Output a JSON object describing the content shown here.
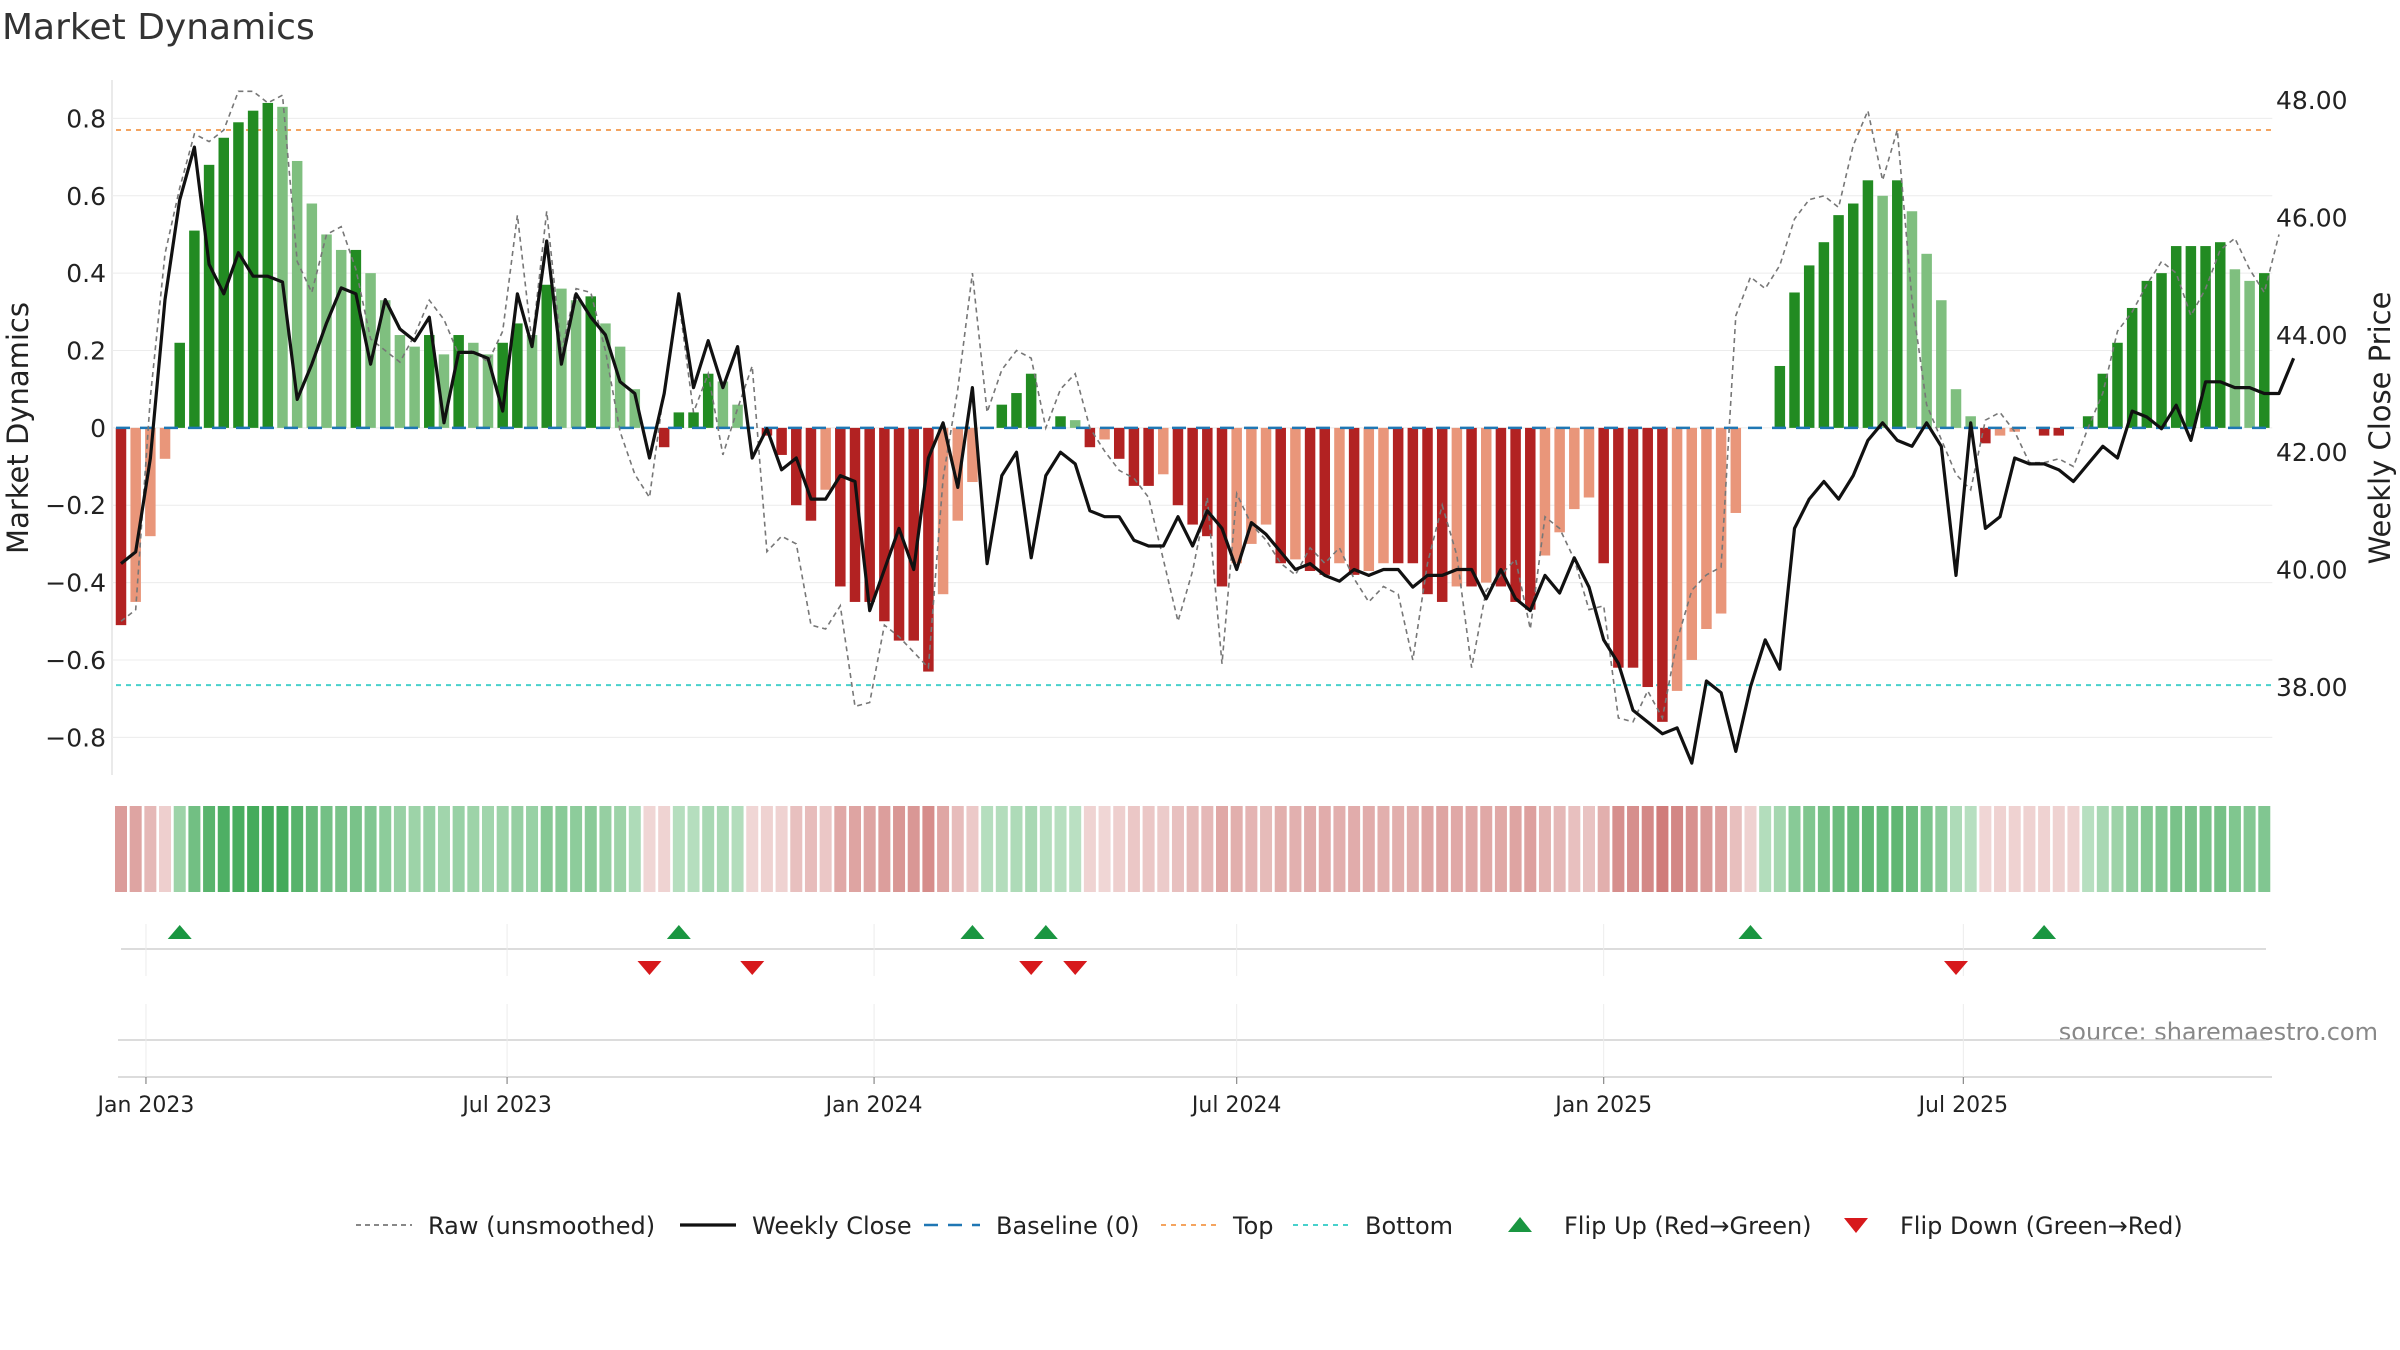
{
  "chart_data": {
    "type": "bar",
    "title": "Market Dynamics",
    "ylabel": "Market Dynamics",
    "y2label": "Weekly Close Price",
    "source": "source: sharemaestro.com",
    "ylim": [
      -0.9,
      0.92
    ],
    "y2lim": [
      36.48,
      48.48
    ],
    "y_ticks": [
      "−0.8",
      "−0.6",
      "−0.4",
      "−0.2",
      "0",
      "0.2",
      "0.4",
      "0.6",
      "0.8"
    ],
    "y_tick_values": [
      -0.8,
      -0.6,
      -0.4,
      -0.2,
      0,
      0.2,
      0.4,
      0.6,
      0.8
    ],
    "y2_ticks": [
      "38.00",
      "40.00",
      "42.00",
      "44.00",
      "46.00",
      "48.00"
    ],
    "y2_tick_values": [
      38,
      40,
      42,
      44,
      46,
      48
    ],
    "x_ticks": [
      "Jan 2023",
      "Jul 2023",
      "Jan 2024",
      "Jul 2024",
      "Jan 2025",
      "Jul 2025"
    ],
    "x_tick_weeks": [
      1.7,
      26.3,
      51.3,
      76,
      101,
      125.5
    ],
    "top_threshold": 0.77,
    "bottom_threshold": -0.665,
    "grid": true,
    "colors": {
      "strong_green": "#228b22",
      "light_green": "#7fbf7f",
      "strong_red": "#b22222",
      "light_red": "#e9967a",
      "close": "#111111",
      "raw": "#777777",
      "baseline": "#1f77b4",
      "top": "#f4a460",
      "bottom": "#48d1cc",
      "flip_up": "#1a9641",
      "flip_down": "#d7191c"
    },
    "series": [
      {
        "name": "Market Dynamics",
        "values": [
          -0.51,
          -0.45,
          -0.28,
          -0.08,
          0.22,
          0.51,
          0.68,
          0.75,
          0.79,
          0.82,
          0.84,
          0.83,
          0.69,
          0.58,
          0.5,
          0.46,
          0.46,
          0.4,
          0.33,
          0.24,
          0.21,
          0.24,
          0.19,
          0.24,
          0.22,
          0.19,
          0.22,
          0.27,
          0.24,
          0.37,
          0.36,
          0.33,
          0.34,
          0.27,
          0.21,
          0.1,
          0.0,
          -0.05,
          0.04,
          0.04,
          0.14,
          0.12,
          0.06,
          0.0,
          -0.02,
          -0.07,
          -0.2,
          -0.24,
          -0.16,
          -0.41,
          -0.45,
          -0.45,
          -0.5,
          -0.55,
          -0.55,
          -0.63,
          -0.43,
          -0.24,
          -0.14,
          0.0,
          0.06,
          0.09,
          0.14,
          0.0,
          0.03,
          0.02,
          -0.05,
          -0.03,
          -0.08,
          -0.15,
          -0.15,
          -0.12,
          -0.2,
          -0.25,
          -0.28,
          -0.41,
          -0.35,
          -0.3,
          -0.25,
          -0.35,
          -0.34,
          -0.37,
          -0.38,
          -0.35,
          -0.38,
          -0.37,
          -0.35,
          -0.35,
          -0.35,
          -0.43,
          -0.45,
          -0.41,
          -0.41,
          -0.4,
          -0.41,
          -0.45,
          -0.47,
          -0.33,
          -0.27,
          -0.21,
          -0.18,
          -0.35,
          -0.62,
          -0.62,
          -0.67,
          -0.76,
          -0.68,
          -0.6,
          -0.52,
          -0.48,
          -0.22,
          0.0,
          0.0,
          0.16,
          0.35,
          0.42,
          0.48,
          0.55,
          0.58,
          0.64,
          0.6,
          0.64,
          0.56,
          0.45,
          0.33,
          0.1,
          0.03,
          -0.04,
          -0.02,
          -0.01,
          0.0,
          -0.02,
          -0.02,
          0.0,
          0.03,
          0.14,
          0.22,
          0.31,
          0.38,
          0.4,
          0.47,
          0.47,
          0.47,
          0.48,
          0.41,
          0.38,
          0.4
        ]
      },
      {
        "name": "Weekly Close",
        "values": [
          40.1,
          40.3,
          41.9,
          44.6,
          46.3,
          47.2,
          45.2,
          44.7,
          45.4,
          45.0,
          45.0,
          44.9,
          42.9,
          43.5,
          44.2,
          44.8,
          44.7,
          43.5,
          44.6,
          44.1,
          43.9,
          44.3,
          42.5,
          43.7,
          43.7,
          43.6,
          42.7,
          44.7,
          43.8,
          45.6,
          43.5,
          44.7,
          44.3,
          44.0,
          43.2,
          43.0,
          41.9,
          43.0,
          44.7,
          43.1,
          43.9,
          43.1,
          43.8,
          41.9,
          42.4,
          41.7,
          41.9,
          41.2,
          41.2,
          41.6,
          41.5,
          39.3,
          40.0,
          40.7,
          40.0,
          41.9,
          42.5,
          41.4,
          43.1,
          40.1,
          41.6,
          42.0,
          40.2,
          41.6,
          42.0,
          41.8,
          41.0,
          40.9,
          40.9,
          40.5,
          40.4,
          40.4,
          40.9,
          40.4,
          41.0,
          40.7,
          40.0,
          40.8,
          40.6,
          40.3,
          40.0,
          40.1,
          39.9,
          39.8,
          40.0,
          39.9,
          40.0,
          40.0,
          39.7,
          39.9,
          39.9,
          40.0,
          40.0,
          39.5,
          40.0,
          39.5,
          39.3,
          39.9,
          39.6,
          40.2,
          39.7,
          38.8,
          38.4,
          37.6,
          37.4,
          37.2,
          37.3,
          36.7,
          38.1,
          37.9,
          36.9,
          38.0,
          38.8,
          38.3,
          40.7,
          41.2,
          41.5,
          41.2,
          41.6,
          42.2,
          42.5,
          42.2,
          42.1,
          42.5,
          42.1,
          39.9,
          42.5,
          40.7,
          40.9,
          41.9,
          41.8,
          41.8,
          41.7,
          41.5,
          41.8,
          42.1,
          41.9,
          42.7,
          42.6,
          42.4,
          42.8,
          42.2,
          43.2,
          43.2,
          43.1,
          43.1,
          43.0,
          43.0,
          43.6
        ]
      },
      {
        "name": "Raw (unsmoothed)",
        "values": [
          -0.5,
          -0.47,
          0.08,
          0.45,
          0.62,
          0.76,
          0.74,
          0.77,
          0.87,
          0.87,
          0.84,
          0.86,
          0.43,
          0.35,
          0.5,
          0.52,
          0.41,
          0.23,
          0.2,
          0.17,
          0.24,
          0.33,
          0.28,
          0.19,
          0.2,
          0.17,
          0.25,
          0.55,
          0.22,
          0.56,
          0.2,
          0.36,
          0.35,
          0.2,
          -0.01,
          -0.12,
          -0.18,
          0.1,
          0.33,
          0.04,
          0.14,
          -0.07,
          0.05,
          0.16,
          -0.32,
          -0.28,
          -0.3,
          -0.51,
          -0.52,
          -0.46,
          -0.72,
          -0.71,
          -0.51,
          -0.54,
          -0.58,
          -0.62,
          -0.13,
          0.1,
          0.4,
          0.04,
          0.15,
          0.2,
          0.18,
          0.0,
          0.1,
          0.14,
          0.0,
          -0.06,
          -0.11,
          -0.13,
          -0.18,
          -0.34,
          -0.5,
          -0.37,
          -0.18,
          -0.61,
          -0.17,
          -0.25,
          -0.29,
          -0.35,
          -0.38,
          -0.31,
          -0.35,
          -0.31,
          -0.39,
          -0.45,
          -0.41,
          -0.43,
          -0.6,
          -0.35,
          -0.2,
          -0.33,
          -0.62,
          -0.42,
          -0.38,
          -0.34,
          -0.52,
          -0.23,
          -0.26,
          -0.34,
          -0.47,
          -0.46,
          -0.75,
          -0.76,
          -0.68,
          -0.75,
          -0.55,
          -0.42,
          -0.38,
          -0.36,
          0.29,
          0.39,
          0.36,
          0.42,
          0.54,
          0.59,
          0.6,
          0.57,
          0.73,
          0.82,
          0.64,
          0.77,
          0.33,
          0.06,
          -0.03,
          -0.12,
          -0.16,
          0.02,
          0.04,
          -0.01,
          -0.09,
          -0.09,
          -0.08,
          -0.1,
          0.0,
          0.09,
          0.25,
          0.3,
          0.37,
          0.43,
          0.4,
          0.29,
          0.36,
          0.46,
          0.49,
          0.41,
          0.35,
          0.5
        ]
      },
      {
        "name": "Baseline (0)",
        "values": [
          0
        ]
      },
      {
        "name": "Top",
        "values": [
          0.77
        ]
      },
      {
        "name": "Bottom",
        "values": [
          -0.665
        ]
      }
    ],
    "regime_strip": [
      -0.51,
      -0.45,
      -0.28,
      -0.08,
      0.22,
      0.51,
      0.68,
      0.75,
      0.79,
      0.82,
      0.84,
      0.83,
      0.69,
      0.58,
      0.5,
      0.46,
      0.46,
      0.4,
      0.33,
      0.24,
      0.21,
      0.24,
      0.19,
      0.24,
      0.22,
      0.19,
      0.22,
      0.27,
      0.24,
      0.37,
      0.36,
      0.33,
      0.34,
      0.27,
      0.21,
      0.1,
      -0.04,
      -0.05,
      0.04,
      0.04,
      0.14,
      0.12,
      0.06,
      -0.04,
      -0.06,
      -0.07,
      -0.2,
      -0.24,
      -0.16,
      -0.41,
      -0.45,
      -0.45,
      -0.5,
      -0.55,
      -0.55,
      -0.63,
      -0.43,
      -0.24,
      -0.14,
      0.04,
      0.06,
      0.09,
      0.14,
      0.04,
      0.03,
      0.02,
      -0.05,
      -0.03,
      -0.08,
      -0.15,
      -0.15,
      -0.12,
      -0.2,
      -0.25,
      -0.28,
      -0.41,
      -0.35,
      -0.3,
      -0.25,
      -0.35,
      -0.34,
      -0.37,
      -0.38,
      -0.35,
      -0.38,
      -0.37,
      -0.35,
      -0.35,
      -0.35,
      -0.43,
      -0.45,
      -0.41,
      -0.41,
      -0.4,
      -0.41,
      -0.45,
      -0.47,
      -0.33,
      -0.27,
      -0.21,
      -0.18,
      -0.35,
      -0.62,
      -0.62,
      -0.67,
      -0.76,
      -0.68,
      -0.6,
      -0.52,
      -0.48,
      -0.22,
      -0.06,
      0.06,
      0.16,
      0.35,
      0.42,
      0.48,
      0.55,
      0.58,
      0.64,
      0.6,
      0.64,
      0.56,
      0.45,
      0.33,
      0.1,
      0.03,
      -0.04,
      -0.06,
      -0.06,
      -0.06,
      -0.06,
      -0.06,
      -0.06,
      0.03,
      0.14,
      0.22,
      0.31,
      0.38,
      0.4,
      0.47,
      0.47,
      0.47,
      0.48,
      0.41,
      0.38,
      0.4
    ],
    "flip_up_weeks": [
      4,
      38,
      58,
      63,
      111,
      131
    ],
    "flip_down_weeks": [
      36,
      43,
      62,
      65,
      125
    ],
    "legend": [
      {
        "label": "Raw (unsmoothed)",
        "kind": "raw"
      },
      {
        "label": "Weekly Close",
        "kind": "close"
      },
      {
        "label": "Baseline (0)",
        "kind": "baseline"
      },
      {
        "label": "Top",
        "kind": "top"
      },
      {
        "label": "Bottom",
        "kind": "bottom"
      },
      {
        "label": "Flip Up (Red→Green)",
        "kind": "flip_up"
      },
      {
        "label": "Flip Down (Green→Red)",
        "kind": "flip_down"
      }
    ]
  }
}
